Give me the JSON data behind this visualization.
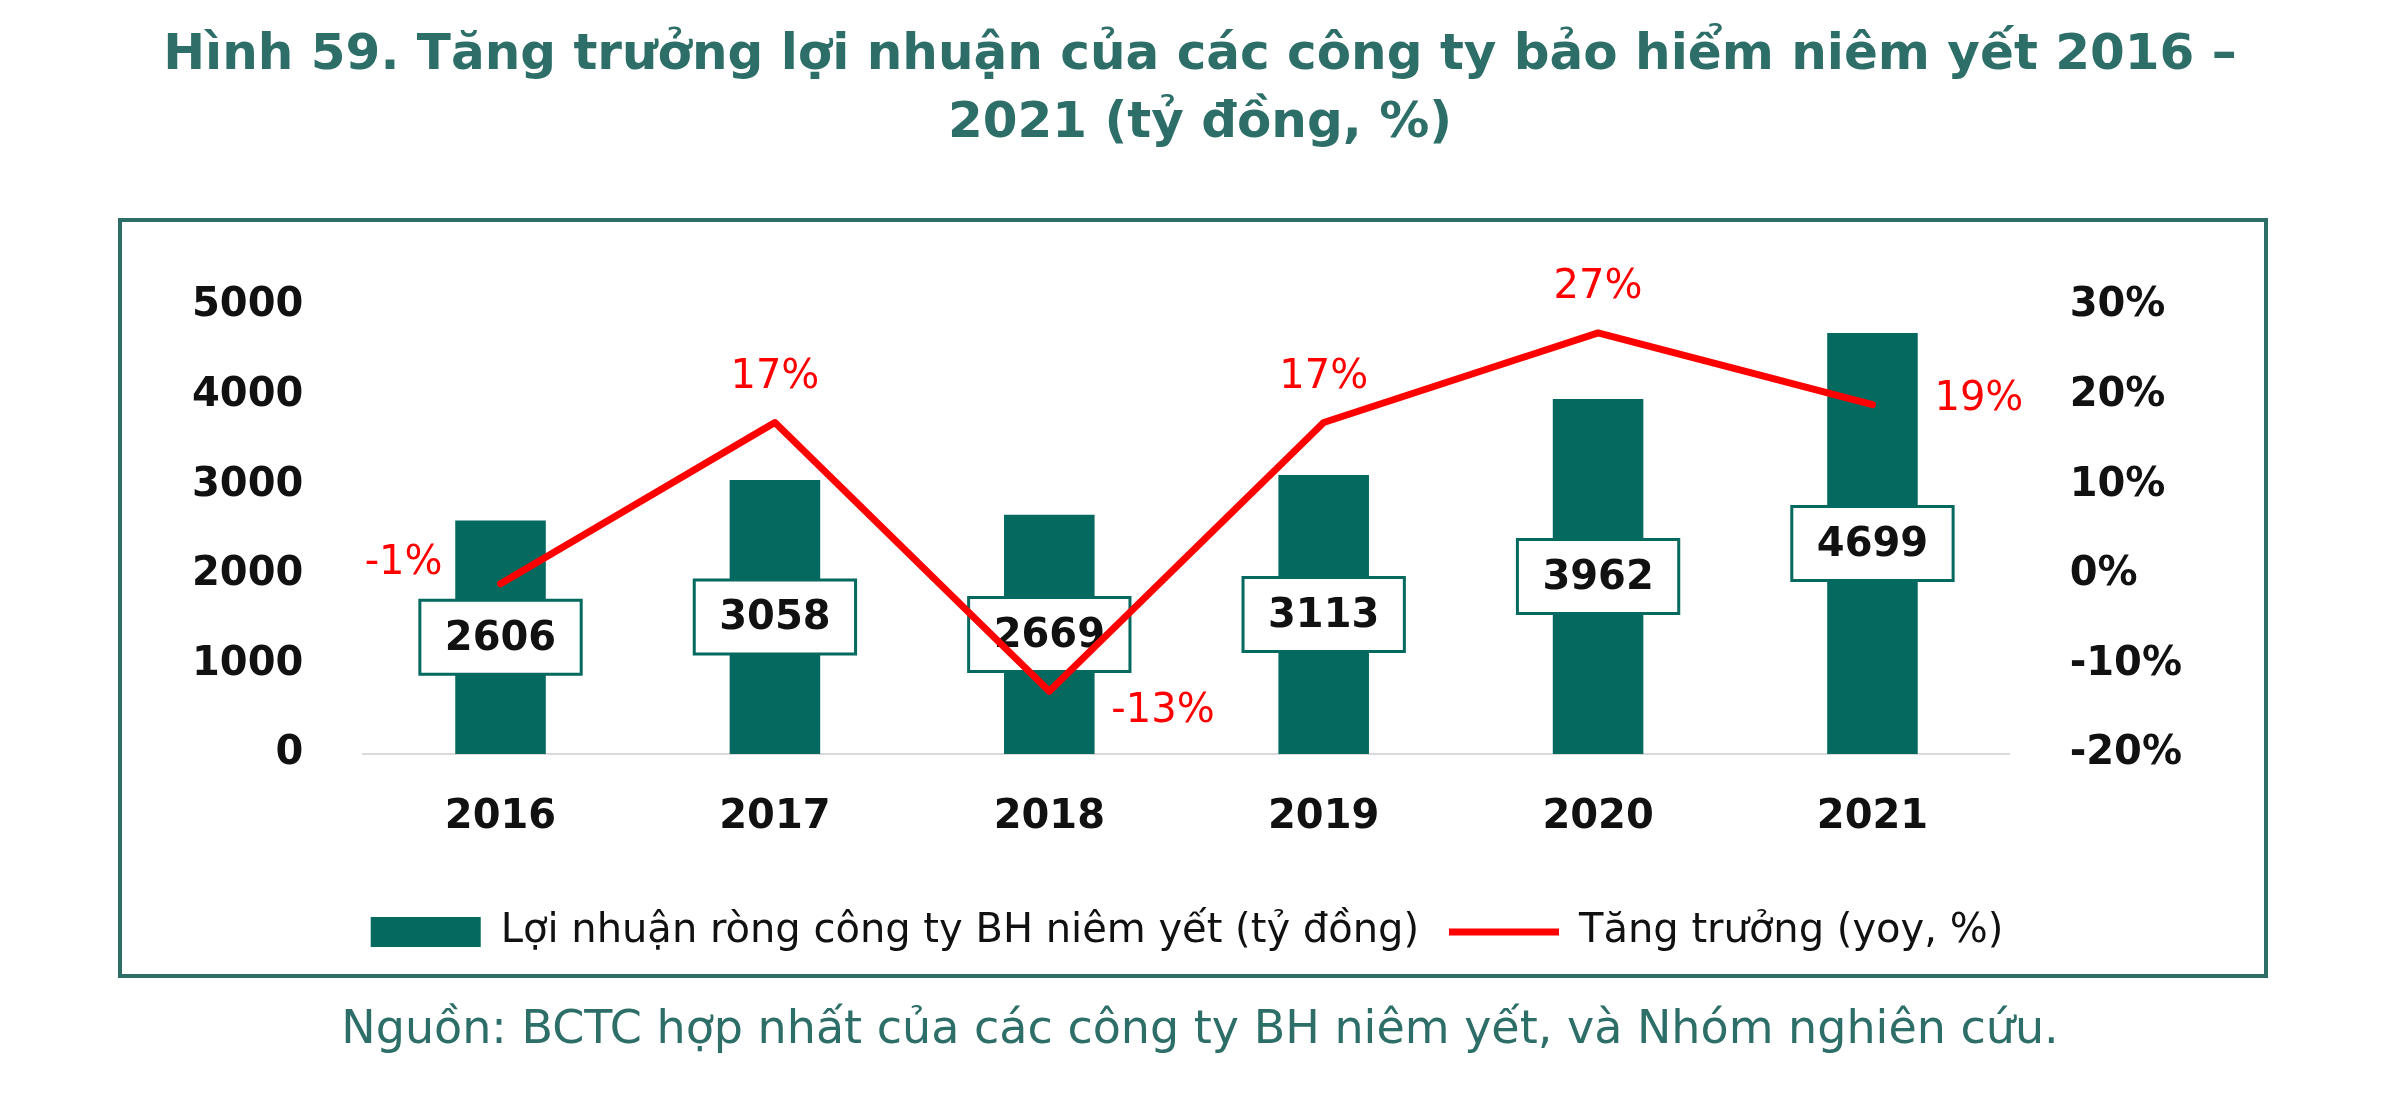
{
  "chart_data": {
    "type": "bar",
    "title": "Hình 59. Tăng trưởng lợi nhuận của các công ty bảo hiểm niêm yết 2016 – 2021 (tỷ đồng, %)",
    "annotations": [
      "Nguồn: BCTC hợp nhất của các công ty BH niêm yết, và Nhóm nghiên cứu."
    ],
    "categories": [
      "2016",
      "2017",
      "2018",
      "2019",
      "2020",
      "2021"
    ],
    "series": [
      {
        "name": "Lợi nhuận ròng công ty BH niêm yết (tỷ đồng)",
        "color": "#04695f",
        "values": [
          2606,
          3058,
          2669,
          3113,
          3962,
          4699
        ],
        "value_labels": [
          "2606",
          "3058",
          "2669",
          "3113",
          "3962",
          "4699"
        ]
      },
      {
        "name": "Tăng trưởng (yoy, %)",
        "type": "line",
        "axis": "y2",
        "color": "#ff0000",
        "values": [
          -1,
          17,
          -13,
          17,
          27,
          19
        ],
        "value_labels": [
          "-1%",
          "17%",
          "-13%",
          "17%",
          "27%",
          "19%"
        ]
      }
    ],
    "ylim": [
      0,
      5000
    ],
    "yticks": [
      0,
      1000,
      2000,
      3000,
      4000,
      5000
    ],
    "y2lim": [
      -20,
      30
    ],
    "y2ticks": [
      {
        "value": -20,
        "label": "-20%"
      },
      {
        "value": -10,
        "label": "-10%"
      },
      {
        "value": 0,
        "label": "0%"
      },
      {
        "value": 10,
        "label": "10%"
      },
      {
        "value": 20,
        "label": "20%"
      },
      {
        "value": 30,
        "label": "30%"
      }
    ],
    "grid": false,
    "legend": "bottom"
  }
}
